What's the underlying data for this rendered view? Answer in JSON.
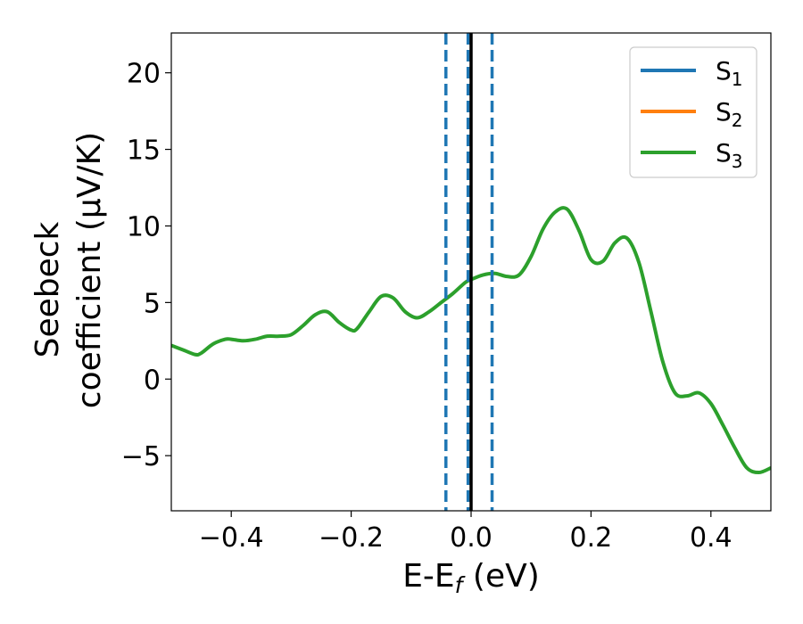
{
  "chart_data": {
    "type": "line",
    "xlabel": "E-E",
    "xlabel_sub": "f",
    "xlabel_unit": " (eV)",
    "ylabel_line1": "Seebeck",
    "ylabel_line2": "coefficient  (μV/K)",
    "xlim": [
      -0.5,
      0.5
    ],
    "ylim": [
      -8.6,
      22.6
    ],
    "x_ticks": [
      -0.4,
      -0.2,
      0.0,
      0.2,
      0.4
    ],
    "x_tick_labels": [
      "−0.4",
      "−0.2",
      "0.0",
      "0.2",
      "0.4"
    ],
    "y_ticks": [
      -5,
      0,
      5,
      10,
      15,
      20
    ],
    "y_tick_labels": [
      "−5",
      "0",
      "5",
      "10",
      "15",
      "20"
    ],
    "grid": false,
    "legend_position": "top-right",
    "vertical_lines": [
      {
        "x": -0.042,
        "style": "dashed",
        "color": "#1f77b4"
      },
      {
        "x": -0.005,
        "style": "dashed",
        "color": "#1f77b4"
      },
      {
        "x": 0.0,
        "style": "solid",
        "color": "#000000"
      },
      {
        "x": 0.035,
        "style": "dashed",
        "color": "#1f77b4"
      }
    ],
    "series": [
      {
        "name": "S",
        "sub": "1",
        "color": "#1f77b4"
      },
      {
        "name": "S",
        "sub": "2",
        "color": "#ff7f0e"
      },
      {
        "name": "S",
        "sub": "3",
        "color": "#2ca02c",
        "x": [
          -0.5,
          -0.48,
          -0.46,
          -0.45,
          -0.43,
          -0.41,
          -0.4,
          -0.38,
          -0.36,
          -0.34,
          -0.32,
          -0.3,
          -0.28,
          -0.26,
          -0.24,
          -0.22,
          -0.2,
          -0.19,
          -0.17,
          -0.15,
          -0.13,
          -0.11,
          -0.09,
          -0.07,
          -0.05,
          -0.03,
          -0.01,
          0.0,
          0.02,
          0.04,
          0.06,
          0.08,
          0.1,
          0.12,
          0.14,
          0.16,
          0.18,
          0.2,
          0.22,
          0.24,
          0.26,
          0.28,
          0.3,
          0.32,
          0.34,
          0.36,
          0.38,
          0.4,
          0.42,
          0.44,
          0.46,
          0.48,
          0.5
        ],
        "y": [
          2.2,
          1.9,
          1.6,
          1.7,
          2.3,
          2.6,
          2.6,
          2.5,
          2.6,
          2.8,
          2.8,
          2.9,
          3.5,
          4.2,
          4.4,
          3.7,
          3.2,
          3.3,
          4.4,
          5.4,
          5.3,
          4.4,
          4.0,
          4.4,
          5.0,
          5.6,
          6.3,
          6.5,
          6.8,
          6.9,
          6.7,
          6.8,
          8.0,
          9.8,
          10.9,
          11.1,
          9.7,
          7.8,
          7.7,
          8.9,
          9.2,
          7.6,
          4.4,
          1.1,
          -0.9,
          -1.1,
          -0.9,
          -1.6,
          -3.0,
          -4.5,
          -5.8,
          -6.1,
          -5.8
        ]
      }
    ]
  }
}
